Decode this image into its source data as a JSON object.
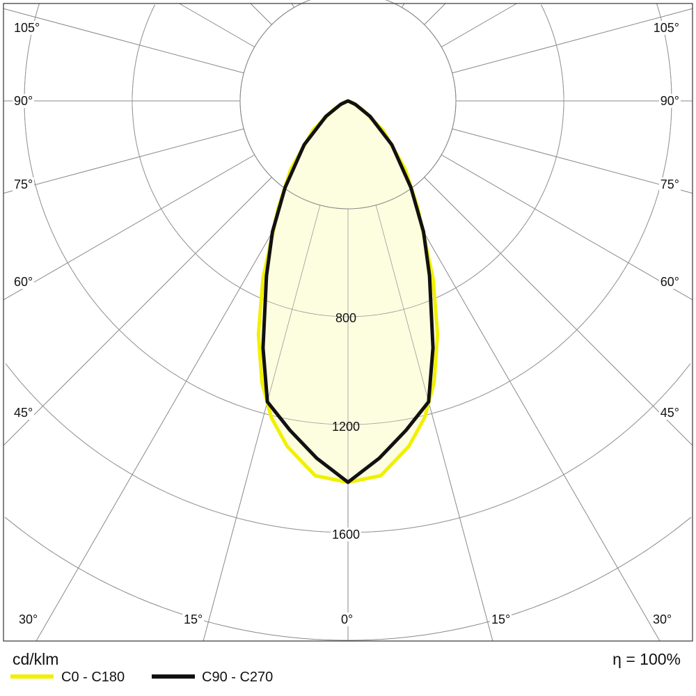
{
  "chart_data": {
    "type": "polar",
    "unit_label": "cd/klm",
    "efficiency_label": "η = 100%",
    "radial_ticks": [
      400,
      800,
      1200,
      1600,
      2000,
      2400,
      2800,
      3200
    ],
    "radial_tick_labels": [
      "800",
      "1200",
      "1600"
    ],
    "angle_step_deg": 15,
    "angle_labels_left": [
      "105°",
      "90°",
      "75°",
      "60°",
      "45°"
    ],
    "angle_labels_bottom": [
      "30°",
      "15°",
      "0°",
      "15°",
      "30°"
    ],
    "angle_labels_right": [
      "105°",
      "90°",
      "75°",
      "60°",
      "45°"
    ],
    "colors": {
      "C0-C180": "#f0f000",
      "C90-C270": "#111111",
      "fill": "#fdfde0"
    },
    "series": [
      {
        "name": "C0 - C180",
        "angles": [
          0,
          5,
          10,
          13.6,
          17,
          21,
          25.6,
          33,
          40,
          50,
          60,
          70,
          90
        ],
        "values": [
          1414,
          1395,
          1300,
          1208,
          1092,
          927,
          730,
          476,
          330,
          170,
          60,
          15,
          0
        ]
      },
      {
        "name": "C90 - C270",
        "angles": [
          0,
          5,
          10,
          15,
          19,
          25,
          30,
          36,
          45,
          55,
          65,
          90
        ],
        "values": [
          1414,
          1330,
          1240,
          1155,
          968,
          715,
          560,
          397,
          230,
          100,
          30,
          0
        ]
      }
    ]
  }
}
